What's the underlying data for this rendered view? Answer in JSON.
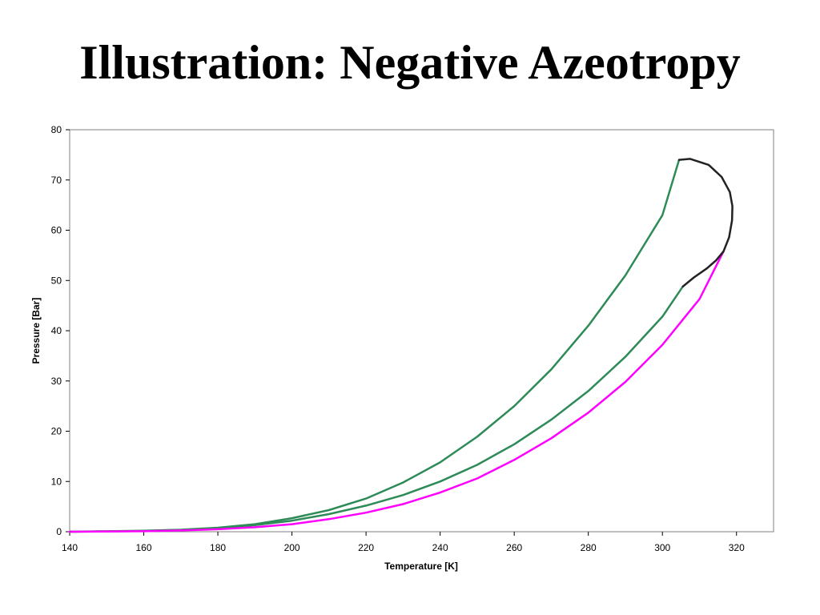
{
  "slide": {
    "title": "Illustration: Negative Azeotropy"
  },
  "chart_data": {
    "type": "line",
    "title": "",
    "xlabel": "Temperature [K]",
    "ylabel": "Pressure [Bar]",
    "xlim": [
      140,
      330
    ],
    "ylim": [
      0,
      80
    ],
    "xticks": [
      140,
      160,
      180,
      200,
      220,
      240,
      260,
      280,
      300,
      320
    ],
    "yticks": [
      0,
      10,
      20,
      30,
      40,
      50,
      60,
      70,
      80
    ],
    "grid": false,
    "legend": "none",
    "series": [
      {
        "color": "#2e8b57",
        "x": [
          140,
          160,
          170,
          180,
          190,
          200,
          210,
          220,
          230,
          240,
          250,
          260,
          270,
          280,
          290,
          300,
          304.5
        ],
        "y": [
          0,
          0.2,
          0.4,
          0.8,
          1.5,
          2.7,
          4.3,
          6.6,
          9.8,
          13.8,
          18.9,
          25.0,
          32.3,
          41.0,
          51.0,
          63.0,
          74.0
        ]
      },
      {
        "color": "#2e8b57",
        "x": [
          140,
          160,
          170,
          180,
          190,
          200,
          210,
          220,
          230,
          240,
          250,
          260,
          270,
          280,
          290,
          300,
          305.5
        ],
        "y": [
          0,
          0.15,
          0.35,
          0.65,
          1.3,
          2.2,
          3.5,
          5.2,
          7.3,
          10.0,
          13.3,
          17.4,
          22.3,
          28.0,
          34.8,
          42.8,
          48.8
        ]
      },
      {
        "color": "#ff00ff",
        "x": [
          140,
          160,
          170,
          180,
          190,
          200,
          210,
          220,
          230,
          240,
          250,
          260,
          270,
          280,
          290,
          300,
          310,
          316.5
        ],
        "y": [
          0,
          0.1,
          0.25,
          0.5,
          0.9,
          1.5,
          2.5,
          3.8,
          5.5,
          7.8,
          10.6,
          14.3,
          18.6,
          23.7,
          29.8,
          37.2,
          46.3,
          55.8
        ]
      },
      {
        "color": "#222222",
        "x": [
          305.5,
          308.5,
          312.0,
          314.5,
          316.5,
          318.0,
          318.8,
          318.9,
          318.2,
          316.0,
          312.5,
          307.5,
          304.5
        ],
        "y": [
          48.8,
          50.6,
          52.4,
          54.0,
          55.8,
          58.6,
          62.0,
          64.8,
          67.6,
          70.6,
          73.0,
          74.2,
          74.0
        ]
      }
    ]
  }
}
